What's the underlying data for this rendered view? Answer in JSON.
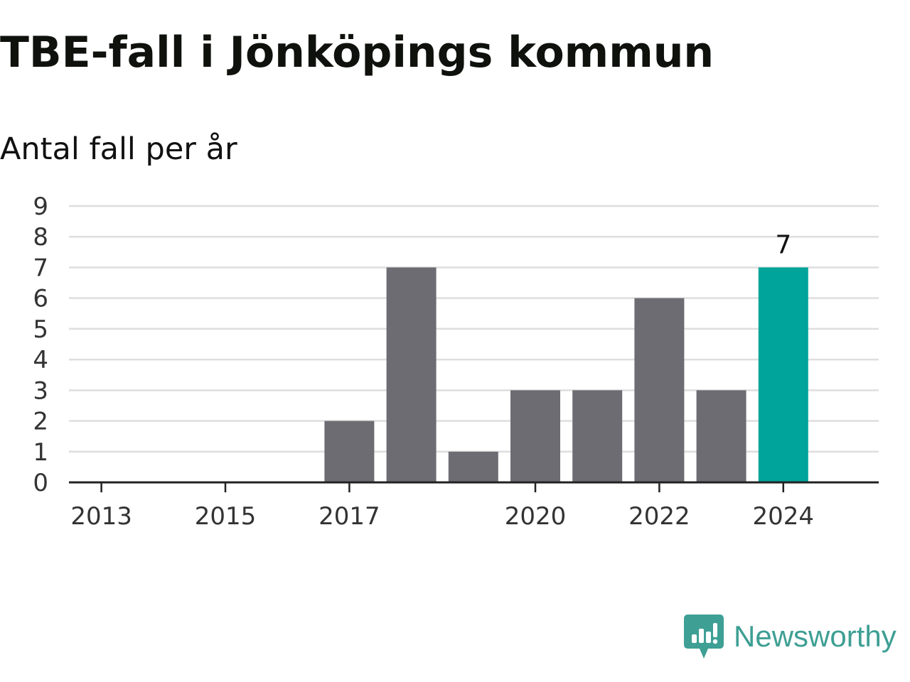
{
  "header": {
    "title": "TBE-fall i Jönköpings kommun",
    "subtitle": "Antal fall per år"
  },
  "brand": {
    "name": "Newsworthy",
    "icon": "newsworthy-logo-icon",
    "color": "#3e9f94"
  },
  "colors": {
    "bar": "#6d6c72",
    "highlight": "#00a49a",
    "grid": "#dedede",
    "axis": "#222222"
  },
  "chart_data": {
    "type": "bar",
    "title": "TBE-fall i Jönköpings kommun",
    "subtitle": "Antal fall per år",
    "xlabel": "",
    "ylabel": "",
    "categories": [
      2013,
      2014,
      2015,
      2016,
      2017,
      2018,
      2019,
      2020,
      2021,
      2022,
      2023,
      2024
    ],
    "values": [
      0,
      0,
      0,
      0,
      2,
      7,
      1,
      3,
      3,
      6,
      3,
      7
    ],
    "ylim": [
      0,
      9
    ],
    "y_ticks": [
      0,
      1,
      2,
      3,
      4,
      5,
      6,
      7,
      8,
      9
    ],
    "x_tick_labels": [
      2013,
      2015,
      2017,
      2020,
      2022,
      2024
    ],
    "highlight_category": 2024,
    "data_labels": [
      {
        "category": 2024,
        "text": "7"
      }
    ],
    "grid": true,
    "legend": false
  }
}
